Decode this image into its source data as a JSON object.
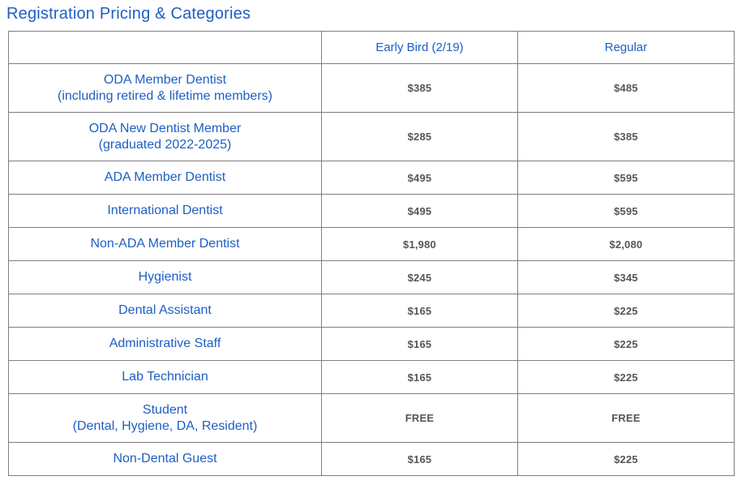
{
  "page": {
    "title": "Registration Pricing & Categories"
  },
  "colors": {
    "heading_blue": "#1d5fc4",
    "price_gray": "#565659",
    "border_gray": "#7f7f7f"
  },
  "chart_data": {
    "type": "table",
    "title": "Registration Pricing & Categories",
    "columns": [
      "",
      "Early Bird (2/19)",
      "Regular"
    ],
    "rows": [
      {
        "category": "ODA Member Dentist",
        "note": "(including retired & lifetime members)",
        "early_bird": "$385",
        "regular": "$485"
      },
      {
        "category": "ODA New Dentist Member",
        "note": "(graduated 2022-2025)",
        "early_bird": "$285",
        "regular": "$385"
      },
      {
        "category": "ADA Member Dentist",
        "note": "",
        "early_bird": "$495",
        "regular": "$595"
      },
      {
        "category": "International Dentist",
        "note": "",
        "early_bird": "$495",
        "regular": "$595"
      },
      {
        "category": "Non-ADA Member Dentist",
        "note": "",
        "early_bird": "$1,980",
        "regular": "$2,080"
      },
      {
        "category": "Hygienist",
        "note": "",
        "early_bird": "$245",
        "regular": "$345"
      },
      {
        "category": "Dental Assistant",
        "note": "",
        "early_bird": "$165",
        "regular": "$225"
      },
      {
        "category": "Administrative Staff",
        "note": "",
        "early_bird": "$165",
        "regular": "$225"
      },
      {
        "category": "Lab Technician",
        "note": "",
        "early_bird": "$165",
        "regular": "$225"
      },
      {
        "category": "Student",
        "note": "(Dental, Hygiene, DA, Resident)",
        "early_bird": "FREE",
        "regular": "FREE"
      },
      {
        "category": "Non-Dental Guest",
        "note": "",
        "early_bird": "$165",
        "regular": "$225"
      }
    ]
  }
}
